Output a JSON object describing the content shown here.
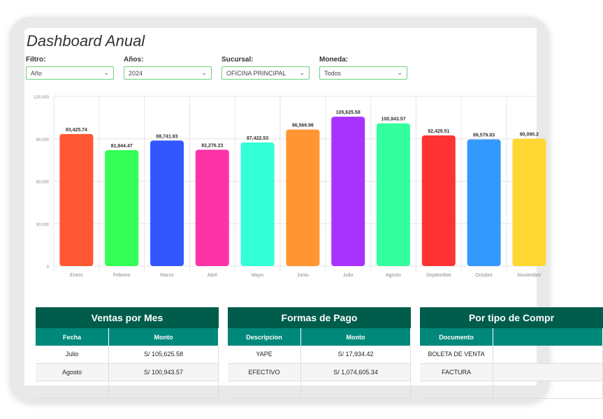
{
  "title": "Dashboard Anual",
  "filters": [
    {
      "label": "Filtro:",
      "value": "Año"
    },
    {
      "label": "Años:",
      "value": "2024"
    },
    {
      "label": "Sucursal:",
      "value": "OFICINA PRINCIPAL"
    },
    {
      "label": "Moneda:",
      "value": "Todos"
    }
  ],
  "chart_data": {
    "type": "bar",
    "categories": [
      "Enero",
      "Febrero",
      "Marzo",
      "Abril",
      "Mayo",
      "Junio",
      "Julio",
      "Agosto",
      "Septiembre",
      "Octubre",
      "Noviembre"
    ],
    "values": [
      93425.74,
      81944.47,
      88741.93,
      82276.23,
      87422.53,
      96566.96,
      105625.58,
      100943.57,
      92429.51,
      89579.83,
      90090.2
    ],
    "labels": [
      "93,425.74",
      "81,944.47",
      "88,741.93",
      "82,276.23",
      "87,422.53",
      "96,566.96",
      "105,625.58",
      "100,943.57",
      "92,429.51",
      "89,579.83",
      "90,090.2"
    ],
    "colors": [
      "#ff5733",
      "#33ff57",
      "#3357ff",
      "#ff33a8",
      "#33ffd7",
      "#ff9633",
      "#a833ff",
      "#33ff9e",
      "#ff3333",
      "#3399ff",
      "#ffd733"
    ],
    "yticks": [
      "0",
      "30,000",
      "60,000",
      "90,000",
      "120,000"
    ],
    "ylim": [
      0,
      120000
    ],
    "grid": true
  },
  "tables": [
    {
      "title": "Ventas por Mes",
      "columns": [
        "Fecha",
        "Monto"
      ],
      "rows": [
        [
          "Julio",
          "S/ 105,625.58"
        ],
        [
          "Agosto",
          "S/ 100,943.57"
        ]
      ]
    },
    {
      "title": "Formas de Pago",
      "columns": [
        "Descripcion",
        "Monto"
      ],
      "rows": [
        [
          "YAPE",
          "S/ 17,934.42"
        ],
        [
          "EFECTIVO",
          "S/ 1,074,605.34"
        ]
      ]
    },
    {
      "title": "Por tipo de Compr",
      "columns": [
        "Documento",
        ""
      ],
      "rows": [
        [
          "BOLETA DE VENTA",
          ""
        ],
        [
          "FACTURA",
          ""
        ]
      ]
    }
  ]
}
